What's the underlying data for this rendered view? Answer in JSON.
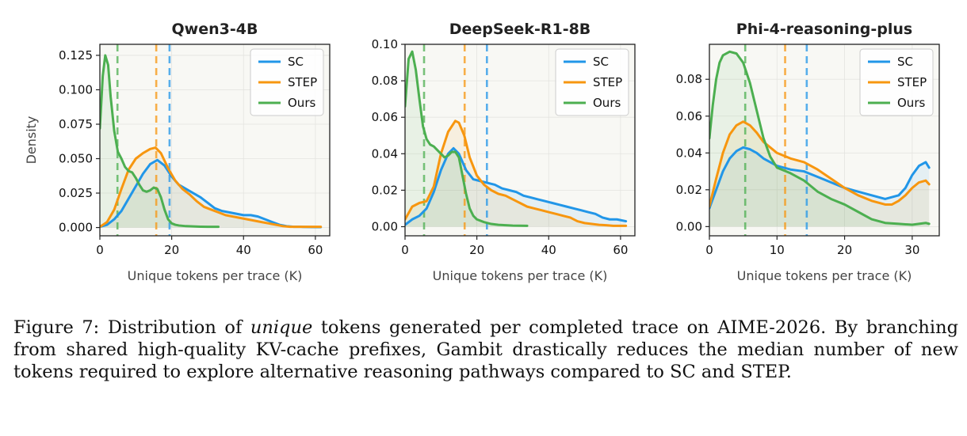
{
  "chart_data": [
    {
      "type": "line",
      "title": "Qwen3-4B",
      "xlabel": "Unique tokens per trace (K)",
      "ylabel": "Density",
      "xlim": [
        0,
        64
      ],
      "ylim": [
        -0.006,
        0.133
      ],
      "xticks": [
        0,
        20,
        40,
        60
      ],
      "yticks": [
        0.0,
        0.025,
        0.05,
        0.075,
        0.1,
        0.125
      ],
      "ytick_labels": [
        "0.000",
        "0.025",
        "0.050",
        "0.075",
        "0.100",
        "0.125"
      ],
      "legend": "top-right",
      "grid": true,
      "series": [
        {
          "name": "SC",
          "color": "#2196e8",
          "median": 19.4,
          "x": [
            0,
            2,
            4,
            6,
            8,
            10,
            12,
            14,
            16,
            18,
            20,
            22,
            24,
            26,
            28,
            30,
            32,
            34,
            36,
            38,
            40,
            42,
            44,
            46,
            48,
            50,
            52,
            54,
            56,
            58,
            60,
            61.5
          ],
          "y": [
            0.0005,
            0.002,
            0.006,
            0.012,
            0.021,
            0.03,
            0.039,
            0.046,
            0.049,
            0.045,
            0.037,
            0.031,
            0.028,
            0.025,
            0.022,
            0.018,
            0.014,
            0.012,
            0.011,
            0.01,
            0.009,
            0.009,
            0.008,
            0.006,
            0.004,
            0.002,
            0.001,
            0.0005,
            0.0005,
            0.0004,
            0.0003,
            0.0003
          ]
        },
        {
          "name": "STEP",
          "color": "#f7960f",
          "median": 15.7,
          "x": [
            0,
            2,
            4,
            6,
            8,
            10,
            12,
            14,
            15.5,
            17,
            19,
            21,
            23,
            25,
            27,
            29,
            31,
            33,
            35,
            37,
            39,
            41,
            43,
            45,
            47,
            49,
            51,
            53,
            55,
            57,
            59,
            61.5
          ],
          "y": [
            0.0005,
            0.004,
            0.013,
            0.028,
            0.042,
            0.05,
            0.054,
            0.057,
            0.058,
            0.054,
            0.043,
            0.034,
            0.028,
            0.024,
            0.019,
            0.015,
            0.013,
            0.011,
            0.009,
            0.008,
            0.007,
            0.006,
            0.005,
            0.004,
            0.003,
            0.002,
            0.001,
            0.0005,
            0.0005,
            0.0005,
            0.0005,
            0.0005
          ]
        },
        {
          "name": "Ours",
          "color": "#4caf50",
          "median": 4.9,
          "x": [
            0,
            0.8,
            1.5,
            2.3,
            3,
            4,
            5,
            6,
            7,
            8,
            9,
            10,
            11,
            12,
            13,
            14,
            15,
            16,
            17,
            18,
            19,
            20,
            21,
            22,
            24,
            26,
            28,
            30,
            33
          ],
          "y": [
            0.072,
            0.11,
            0.125,
            0.118,
            0.095,
            0.07,
            0.055,
            0.05,
            0.044,
            0.041,
            0.04,
            0.036,
            0.031,
            0.027,
            0.026,
            0.027,
            0.029,
            0.028,
            0.022,
            0.013,
            0.006,
            0.003,
            0.002,
            0.0015,
            0.001,
            0.0008,
            0.0006,
            0.0005,
            0.0005
          ]
        }
      ]
    },
    {
      "type": "line",
      "title": "DeepSeek-R1-8B",
      "xlabel": "Unique tokens per trace (K)",
      "ylabel": "",
      "xlim": [
        0,
        64
      ],
      "ylim": [
        -0.005,
        0.1
      ],
      "xticks": [
        0,
        20,
        40,
        60
      ],
      "yticks": [
        0.0,
        0.02,
        0.04,
        0.06,
        0.08,
        0.1
      ],
      "ytick_labels": [
        "0.00",
        "0.02",
        "0.04",
        "0.06",
        "0.08",
        "0.10"
      ],
      "legend": "top-right",
      "grid": true,
      "series": [
        {
          "name": "SC",
          "color": "#2196e8",
          "median": 22.8,
          "x": [
            0,
            2,
            4,
            6,
            8,
            10,
            12,
            13.5,
            15,
            17,
            19,
            21,
            23,
            25,
            27,
            29,
            31,
            33,
            35,
            37,
            39,
            41,
            43,
            45,
            47,
            49,
            51,
            53,
            55,
            57,
            59,
            61.5
          ],
          "y": [
            0.001,
            0.004,
            0.006,
            0.01,
            0.019,
            0.031,
            0.04,
            0.043,
            0.04,
            0.031,
            0.026,
            0.025,
            0.024,
            0.023,
            0.021,
            0.02,
            0.019,
            0.017,
            0.016,
            0.015,
            0.014,
            0.013,
            0.012,
            0.011,
            0.01,
            0.009,
            0.008,
            0.007,
            0.005,
            0.004,
            0.004,
            0.003
          ]
        },
        {
          "name": "STEP",
          "color": "#f7960f",
          "median": 16.6,
          "x": [
            0,
            2,
            4,
            6,
            8,
            10,
            12,
            14,
            15,
            16.5,
            18,
            20,
            22,
            24,
            26,
            28,
            30,
            32,
            34,
            36,
            38,
            40,
            42,
            44,
            46,
            48,
            50,
            52,
            54,
            56,
            58,
            60,
            61.5
          ],
          "y": [
            0.004,
            0.011,
            0.013,
            0.014,
            0.022,
            0.04,
            0.052,
            0.058,
            0.057,
            0.05,
            0.038,
            0.028,
            0.023,
            0.02,
            0.018,
            0.017,
            0.015,
            0.013,
            0.011,
            0.01,
            0.009,
            0.008,
            0.007,
            0.006,
            0.005,
            0.003,
            0.002,
            0.0015,
            0.001,
            0.0008,
            0.0005,
            0.0005,
            0.0005
          ]
        },
        {
          "name": "Ours",
          "color": "#4caf50",
          "median": 5.3,
          "x": [
            0,
            1,
            2,
            3,
            4,
            5,
            6,
            7,
            8,
            9,
            10,
            11,
            12,
            13,
            14,
            15,
            16,
            17,
            18,
            19,
            20,
            22,
            24,
            26,
            28,
            30,
            34
          ],
          "y": [
            0.066,
            0.092,
            0.096,
            0.086,
            0.07,
            0.055,
            0.048,
            0.045,
            0.044,
            0.042,
            0.04,
            0.038,
            0.039,
            0.041,
            0.041,
            0.038,
            0.028,
            0.018,
            0.01,
            0.006,
            0.004,
            0.0025,
            0.0015,
            0.001,
            0.0008,
            0.0006,
            0.0005
          ]
        }
      ]
    },
    {
      "type": "line",
      "title": "Phi-4-reasoning-plus",
      "xlabel": "Unique tokens per trace (K)",
      "ylabel": "",
      "xlim": [
        0,
        34
      ],
      "ylim": [
        -0.005,
        0.099
      ],
      "xticks": [
        0,
        10,
        20,
        30
      ],
      "yticks": [
        0.0,
        0.02,
        0.04,
        0.06,
        0.08
      ],
      "ytick_labels": [
        "0.00",
        "0.02",
        "0.04",
        "0.06",
        "0.08"
      ],
      "legend": "top-right",
      "grid": true,
      "series": [
        {
          "name": "SC",
          "color": "#2196e8",
          "median": 14.4,
          "x": [
            0,
            1,
            2,
            3,
            4,
            5,
            6,
            7,
            8,
            10,
            12,
            14,
            16,
            18,
            20,
            22,
            24,
            26,
            28,
            29,
            30,
            31,
            32,
            32.5
          ],
          "y": [
            0.01,
            0.02,
            0.03,
            0.037,
            0.041,
            0.043,
            0.042,
            0.04,
            0.037,
            0.033,
            0.031,
            0.03,
            0.027,
            0.024,
            0.021,
            0.019,
            0.017,
            0.015,
            0.017,
            0.021,
            0.028,
            0.033,
            0.035,
            0.032
          ]
        },
        {
          "name": "STEP",
          "color": "#f7960f",
          "median": 11.2,
          "x": [
            0,
            1,
            2,
            3,
            4,
            5,
            6,
            7,
            8,
            10,
            12,
            14,
            16,
            18,
            20,
            22,
            24,
            26,
            27,
            28,
            29,
            30,
            31,
            32,
            32.5
          ],
          "y": [
            0.011,
            0.026,
            0.04,
            0.05,
            0.055,
            0.057,
            0.055,
            0.051,
            0.046,
            0.04,
            0.037,
            0.035,
            0.031,
            0.026,
            0.021,
            0.017,
            0.014,
            0.012,
            0.012,
            0.014,
            0.017,
            0.021,
            0.024,
            0.025,
            0.023
          ]
        },
        {
          "name": "Ours",
          "color": "#4caf50",
          "median": 5.3,
          "x": [
            0,
            0.5,
            1,
            1.5,
            2,
            3,
            4,
            5,
            6,
            7,
            8,
            9,
            10,
            12,
            14,
            16,
            18,
            20,
            22,
            24,
            26,
            28,
            30,
            31,
            32,
            32.5
          ],
          "y": [
            0.048,
            0.066,
            0.08,
            0.089,
            0.093,
            0.095,
            0.094,
            0.089,
            0.078,
            0.063,
            0.048,
            0.038,
            0.032,
            0.029,
            0.025,
            0.019,
            0.015,
            0.012,
            0.008,
            0.004,
            0.002,
            0.0015,
            0.001,
            0.0015,
            0.002,
            0.0015
          ]
        }
      ]
    }
  ],
  "caption": {
    "prefix": "Figure 7: Distribution of ",
    "emph": "unique",
    "suffix": " tokens generated per completed trace on AIME-2026. By branching from shared high-quality KV-cache prefixes, Gambit drastically reduces the median number of new tokens required to explore alternative reasoning pathways compared to SC and STEP."
  }
}
